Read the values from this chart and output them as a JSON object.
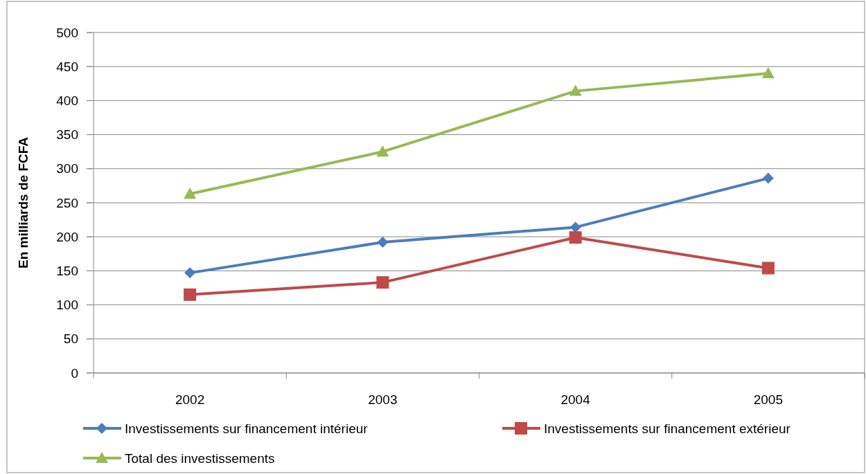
{
  "chart_data": {
    "type": "line",
    "ylabel": "En milliards de FCFA",
    "categories": [
      "2002",
      "2003",
      "2004",
      "2005"
    ],
    "ylim": [
      0,
      500
    ],
    "yticks": [
      0,
      50,
      100,
      150,
      200,
      250,
      300,
      350,
      400,
      450,
      500
    ],
    "grid": "y",
    "legend": "bottom",
    "series": [
      {
        "name": "Investissements sur financement intérieur",
        "color": "#4a7ebb",
        "marker": "diamond",
        "values": [
          147,
          192,
          214,
          286
        ]
      },
      {
        "name": "Investissements sur financement extérieur",
        "color": "#be4b48",
        "marker": "square",
        "values": [
          115,
          133,
          199,
          154
        ]
      },
      {
        "name": "Total des investissements",
        "color": "#98b954",
        "marker": "triangle",
        "values": [
          263,
          325,
          414,
          440
        ]
      }
    ]
  }
}
